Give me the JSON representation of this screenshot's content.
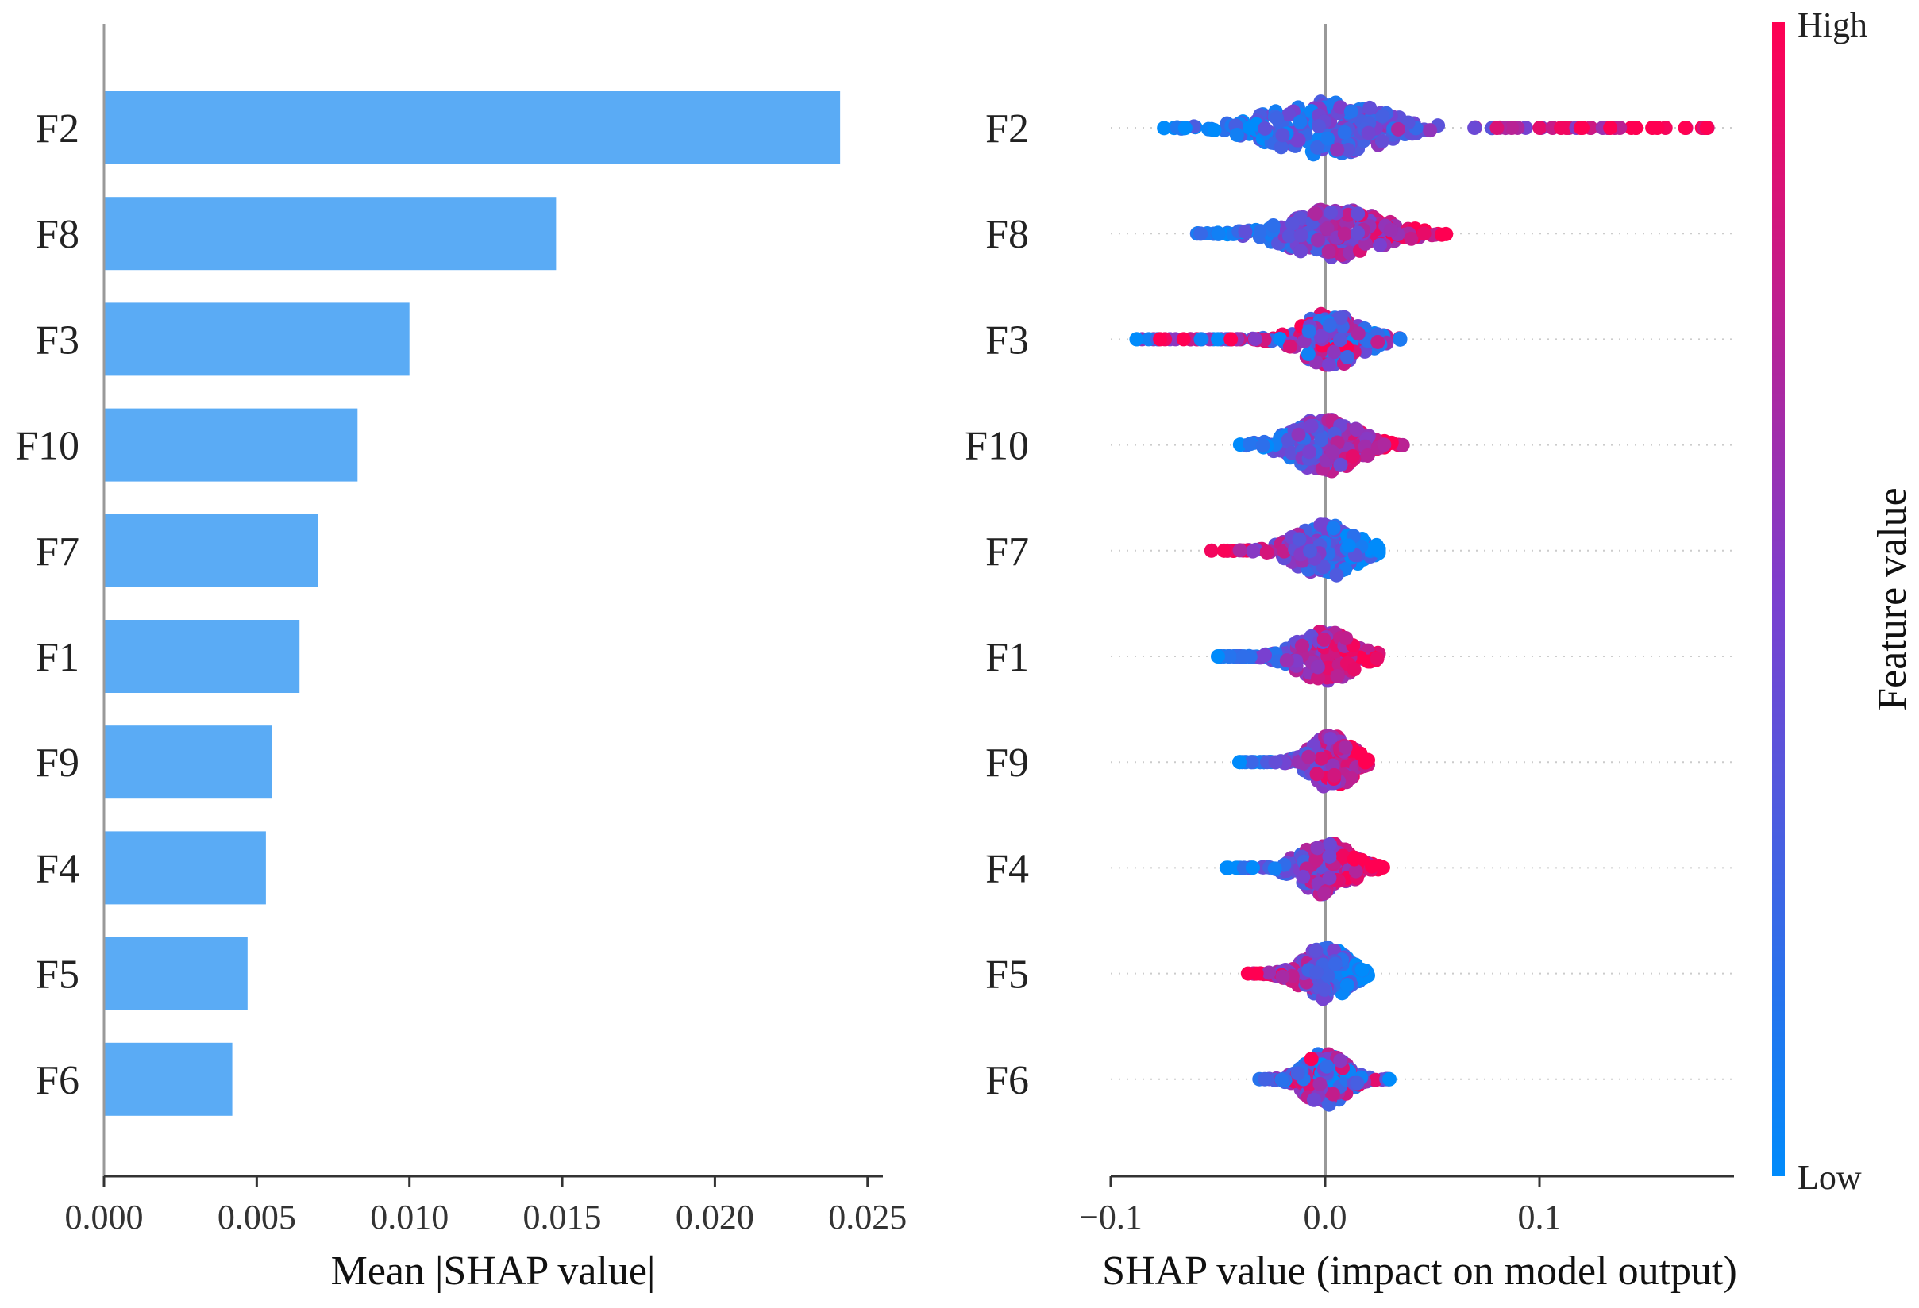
{
  "chart_data": [
    {
      "type": "bar",
      "orientation": "horizontal",
      "title": "",
      "xlabel": "Mean |SHAP value|",
      "ylabel": "",
      "categories": [
        "F2",
        "F8",
        "F3",
        "F10",
        "F7",
        "F1",
        "F9",
        "F4",
        "F5",
        "F6"
      ],
      "values": [
        0.0241,
        0.0148,
        0.01,
        0.0083,
        0.007,
        0.0064,
        0.0055,
        0.0053,
        0.0047,
        0.0042
      ],
      "xlim": [
        0.0,
        0.0255
      ],
      "xticks": [
        0.0,
        0.005,
        0.01,
        0.015,
        0.02,
        0.025
      ],
      "xtick_labels": [
        "0.000",
        "0.005",
        "0.010",
        "0.015",
        "0.020",
        "0.025"
      ],
      "bar_color": "#5aabf5",
      "grid": false
    },
    {
      "type": "scatter",
      "subtype": "beeswarm",
      "title": "",
      "xlabel": "SHAP value (impact on model output)",
      "ylabel": "",
      "categories": [
        "F2",
        "F8",
        "F3",
        "F10",
        "F7",
        "F1",
        "F9",
        "F4",
        "F5",
        "F6"
      ],
      "xlim": [
        -0.1,
        0.19
      ],
      "xticks": [
        -0.1,
        0.0,
        0.1
      ],
      "xtick_labels": [
        "−0.1",
        "0.0",
        "0.1"
      ],
      "features": [
        {
          "name": "F2",
          "range": [
            -0.077,
            0.18
          ],
          "mode": 0.0,
          "spread": 0.022,
          "width": 36,
          "pos": "high",
          "sample_count": 260,
          "tail_points": [
            [
              0.11,
              0.95
            ],
            [
              0.12,
              1.0
            ],
            [
              0.133,
              1.0
            ],
            [
              0.145,
              1.0
            ],
            [
              0.155,
              1.0
            ],
            [
              0.168,
              1.0
            ],
            [
              0.178,
              1.0
            ]
          ]
        },
        {
          "name": "F8",
          "range": [
            -0.062,
            0.058
          ],
          "mode": 0.005,
          "spread": 0.018,
          "width": 32,
          "pos": "high",
          "sample_count": 240,
          "tail_points": []
        },
        {
          "name": "F3",
          "range": [
            -0.088,
            0.035
          ],
          "mode": 0.003,
          "spread": 0.012,
          "width": 34,
          "pos": "mixed",
          "sample_count": 230,
          "tail_points": [
            [
              -0.088,
              0.0
            ],
            [
              -0.077,
              1.0
            ],
            [
              -0.066,
              1.0
            ],
            [
              -0.058,
              0.05
            ],
            [
              -0.05,
              0.0
            ],
            [
              -0.044,
              1.0
            ]
          ]
        },
        {
          "name": "F10",
          "range": [
            -0.04,
            0.04
          ],
          "mode": 0.0,
          "spread": 0.013,
          "width": 34,
          "pos": "high",
          "sample_count": 210,
          "tail_points": []
        },
        {
          "name": "F7",
          "range": [
            -0.055,
            0.025
          ],
          "mode": 0.0,
          "spread": 0.012,
          "width": 34,
          "pos": "low",
          "sample_count": 200,
          "tail_points": []
        },
        {
          "name": "F1",
          "range": [
            -0.05,
            0.025
          ],
          "mode": 0.0,
          "spread": 0.011,
          "width": 32,
          "pos": "high",
          "sample_count": 200,
          "tail_points": [
            [
              -0.05,
              0.0
            ]
          ]
        },
        {
          "name": "F9",
          "range": [
            -0.04,
            0.02
          ],
          "mode": 0.003,
          "spread": 0.008,
          "width": 34,
          "pos": "high",
          "sample_count": 190,
          "tail_points": [
            [
              -0.04,
              0.0
            ]
          ]
        },
        {
          "name": "F4",
          "range": [
            -0.046,
            0.027
          ],
          "mode": 0.0,
          "spread": 0.01,
          "width": 34,
          "pos": "high",
          "sample_count": 190,
          "tail_points": [
            [
              -0.046,
              0.0
            ]
          ]
        },
        {
          "name": "F5",
          "range": [
            -0.036,
            0.02
          ],
          "mode": 0.0,
          "spread": 0.009,
          "width": 34,
          "pos": "low",
          "sample_count": 180,
          "tail_points": [
            [
              -0.036,
              1.0
            ],
            [
              -0.032,
              1.0
            ]
          ]
        },
        {
          "name": "F6",
          "range": [
            -0.032,
            0.03
          ],
          "mode": 0.0,
          "spread": 0.008,
          "width": 34,
          "pos": "mixed",
          "sample_count": 180,
          "tail_points": [
            [
              0.03,
              0.0
            ]
          ]
        }
      ],
      "colorbar": {
        "title": "Feature value",
        "high_label": "High",
        "low_label": "Low",
        "low_color": "#008bfb",
        "mid_color": "#7b3fcf",
        "high_color": "#ff0052"
      },
      "grid": false
    }
  ]
}
